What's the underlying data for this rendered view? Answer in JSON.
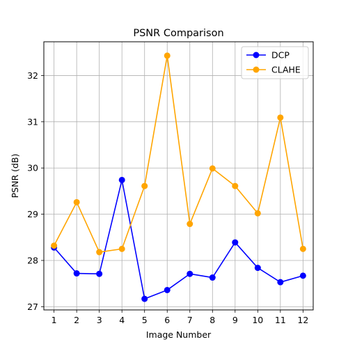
{
  "chart_data": {
    "type": "line",
    "title": "PSNR Comparison",
    "xlabel": "Image Number",
    "ylabel": "PSNR (dB)",
    "x": [
      1,
      2,
      3,
      4,
      5,
      6,
      7,
      8,
      9,
      10,
      11,
      12
    ],
    "x_tick_labels": [
      "1",
      "2",
      "3",
      "4",
      "5",
      "6",
      "7",
      "8",
      "9",
      "10",
      "11",
      "12"
    ],
    "y_ticks": [
      27,
      28,
      29,
      30,
      31,
      32
    ],
    "y_tick_labels": [
      "27",
      "28",
      "29",
      "30",
      "31",
      "32"
    ],
    "xlim": [
      0.55,
      12.45
    ],
    "ylim": [
      26.93,
      32.73
    ],
    "grid": true,
    "legend_position": "top-right",
    "series": [
      {
        "name": "DCP",
        "color": "#0000ff",
        "marker": "circle",
        "values": [
          28.28,
          27.72,
          27.71,
          29.74,
          27.17,
          27.36,
          27.71,
          27.63,
          28.39,
          27.84,
          27.53,
          27.67
        ]
      },
      {
        "name": "CLAHE",
        "color": "#ffa500",
        "marker": "circle",
        "values": [
          28.32,
          29.26,
          28.18,
          28.25,
          29.61,
          32.43,
          28.79,
          29.99,
          29.61,
          29.02,
          31.09,
          28.25
        ]
      }
    ]
  }
}
